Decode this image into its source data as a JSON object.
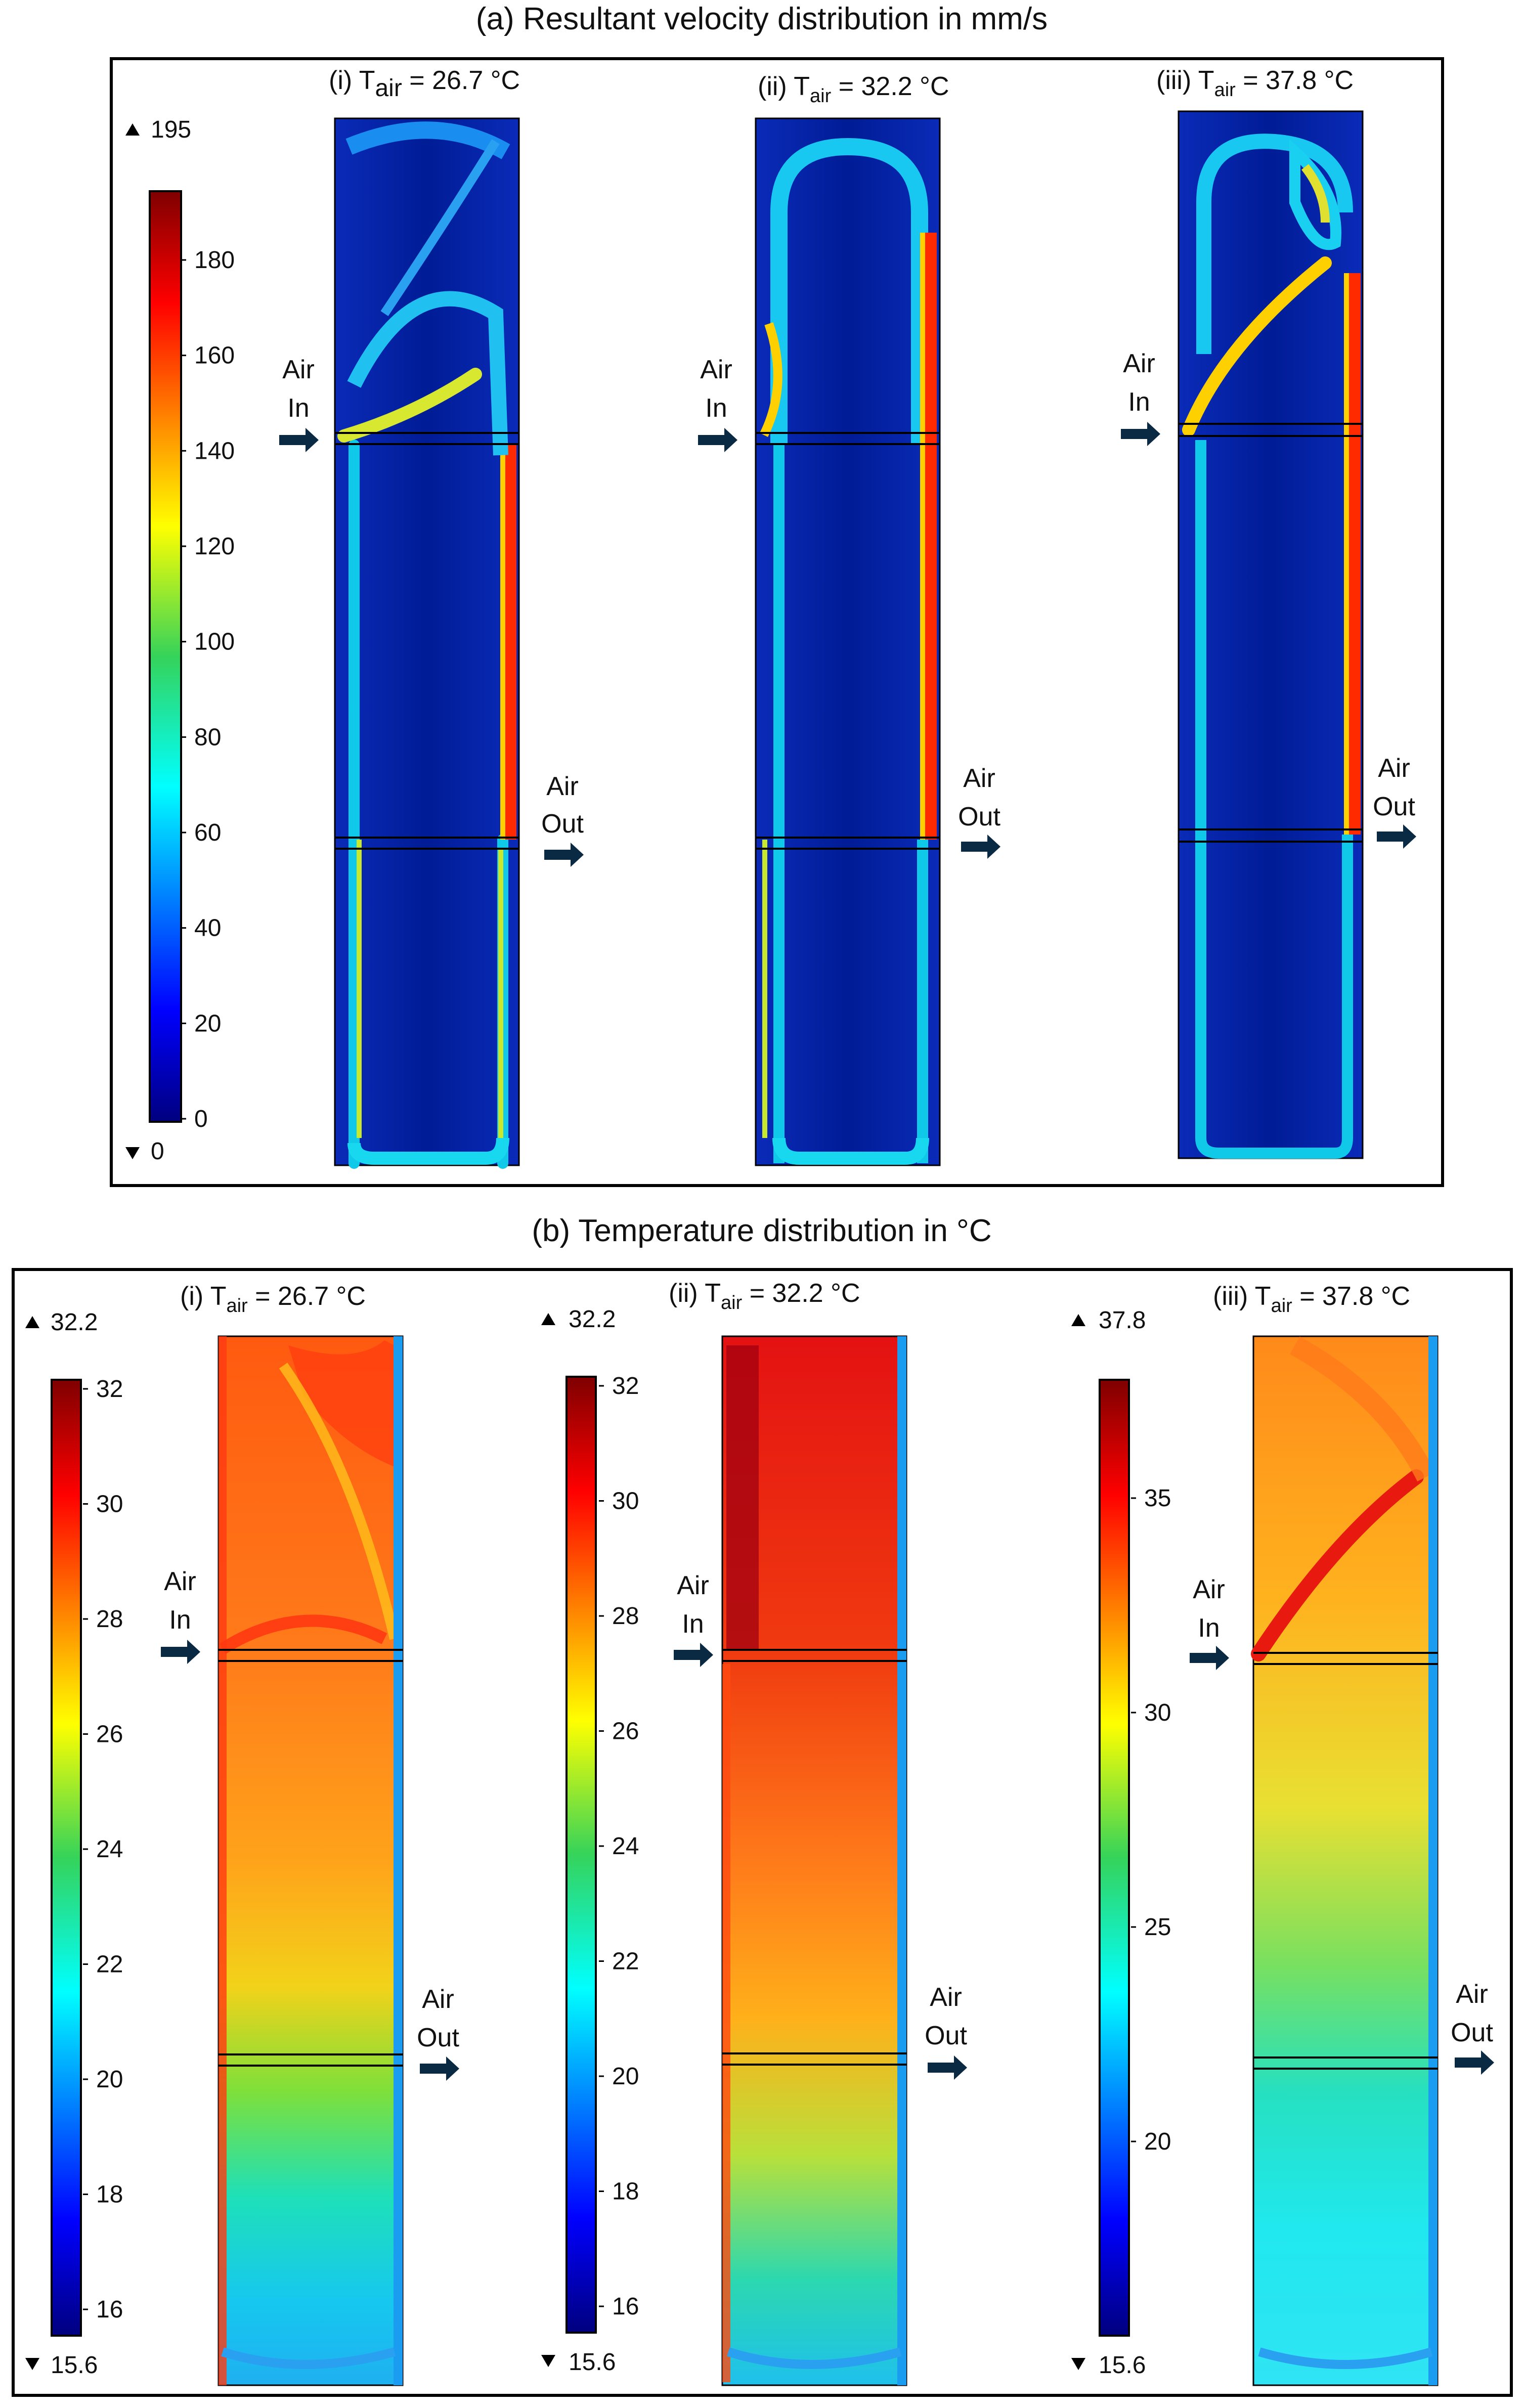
{
  "panel_a": {
    "title": "(a) Resultant velocity distribution in mm/s",
    "colorbar": {
      "max_label": "195",
      "min_label": "0",
      "ticks": [
        "0",
        "20",
        "40",
        "60",
        "80",
        "100",
        "120",
        "140",
        "160",
        "180"
      ]
    },
    "cases": [
      {
        "label_prefix": "(i) T",
        "label_sub": "air",
        "label_suffix": " = 26.7 °C"
      },
      {
        "label_prefix": "(ii) T",
        "label_sub": "air",
        "label_suffix": " = 32.2 °C"
      },
      {
        "label_prefix": "(iii) T",
        "label_sub": "air",
        "label_suffix": " = 37.8 °C"
      }
    ]
  },
  "panel_b": {
    "title": "(b) Temperature distribution in °C",
    "cases": [
      {
        "label_prefix": "(i) T",
        "label_sub": "air",
        "label_suffix": " = 26.7 °C",
        "max_label": "32.2",
        "min_label": "15.6",
        "ticks": [
          "16",
          "18",
          "20",
          "22",
          "24",
          "26",
          "28",
          "30",
          "32"
        ]
      },
      {
        "label_prefix": "(ii) T",
        "label_sub": "air",
        "label_suffix": " = 32.2 °C",
        "max_label": "32.2",
        "min_label": "15.6",
        "ticks": [
          "16",
          "18",
          "20",
          "22",
          "24",
          "26",
          "28",
          "30",
          "32"
        ]
      },
      {
        "label_prefix": "(iii) T",
        "label_sub": "air",
        "label_suffix": " = 37.8 °C",
        "max_label": "37.8",
        "min_label": "15.6",
        "ticks": [
          "20",
          "25",
          "30",
          "35"
        ]
      }
    ]
  },
  "flow_labels": {
    "air_in_1": "Air",
    "air_in_2": "In",
    "air_out_1": "Air",
    "air_out_2": "Out"
  }
}
